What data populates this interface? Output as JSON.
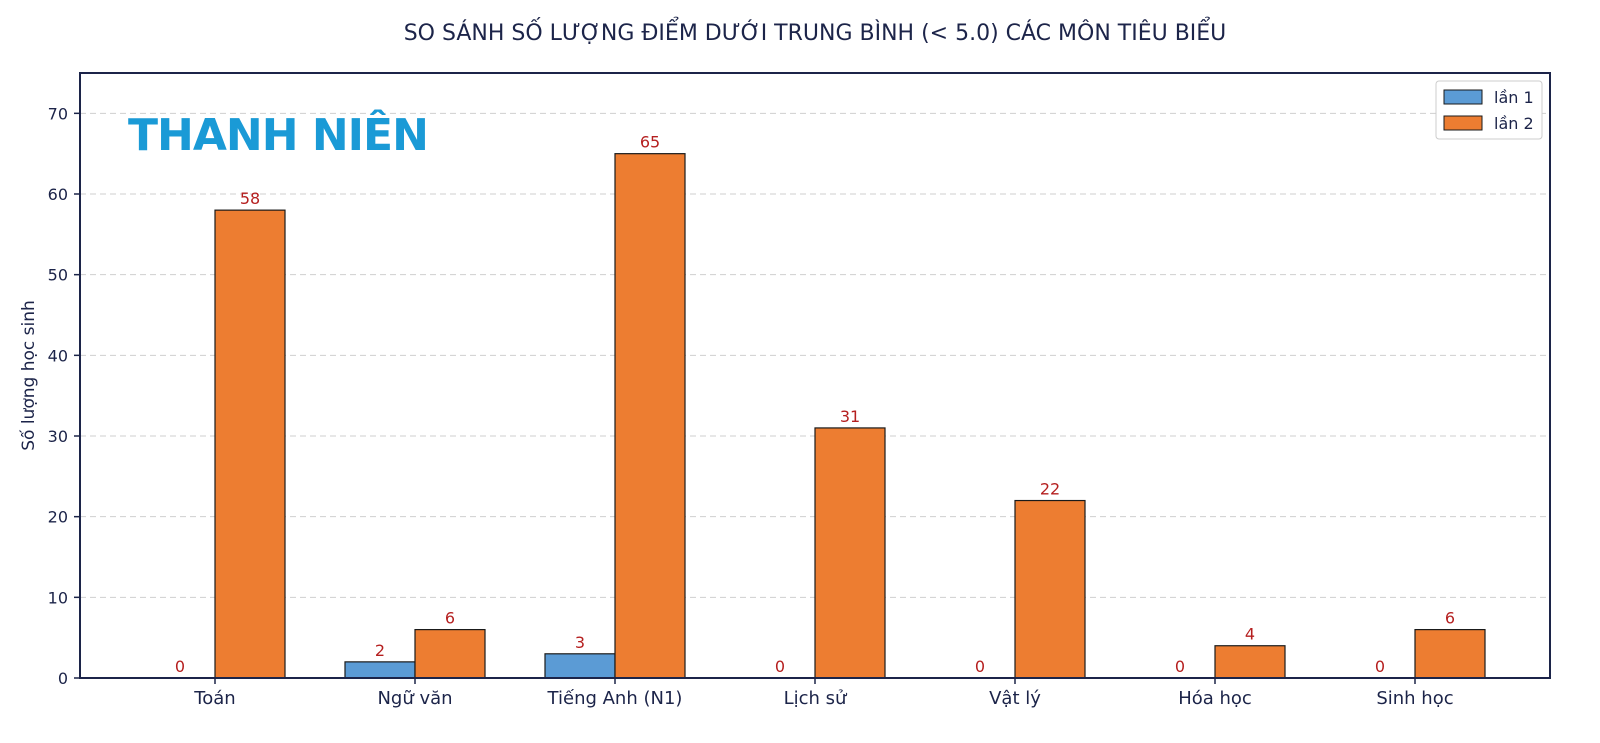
{
  "chart_data": {
    "type": "bar",
    "title": "SO SÁNH SỐ LƯỢNG ĐIỂM DƯỚI TRUNG BÌNH (< 5.0) CÁC MÔN TIÊU BIỂU",
    "xlabel": "",
    "ylabel": "Số lượng học sinh",
    "ylim": [
      0,
      75
    ],
    "yticks": [
      0,
      10,
      20,
      30,
      40,
      50,
      60,
      70
    ],
    "grid": true,
    "legend_position": "top-right",
    "categories": [
      "Toán",
      "Ngữ văn",
      "Tiếng Anh (N1)",
      "Lịch sử",
      "Vật lý",
      "Hóa học",
      "Sinh học"
    ],
    "series": [
      {
        "name": "lần 1",
        "color": "#5b9bd5",
        "values": [
          0,
          2,
          3,
          0,
          0,
          0,
          0
        ]
      },
      {
        "name": "lần 2",
        "color": "#ed7d31",
        "values": [
          58,
          6,
          65,
          31,
          22,
          4,
          6
        ]
      }
    ],
    "colors": {
      "axis": "#1c2449",
      "data_label": "#b51f1f"
    }
  },
  "watermark": {
    "text": "THANH NIÊN",
    "color": "#1a9ad6"
  }
}
